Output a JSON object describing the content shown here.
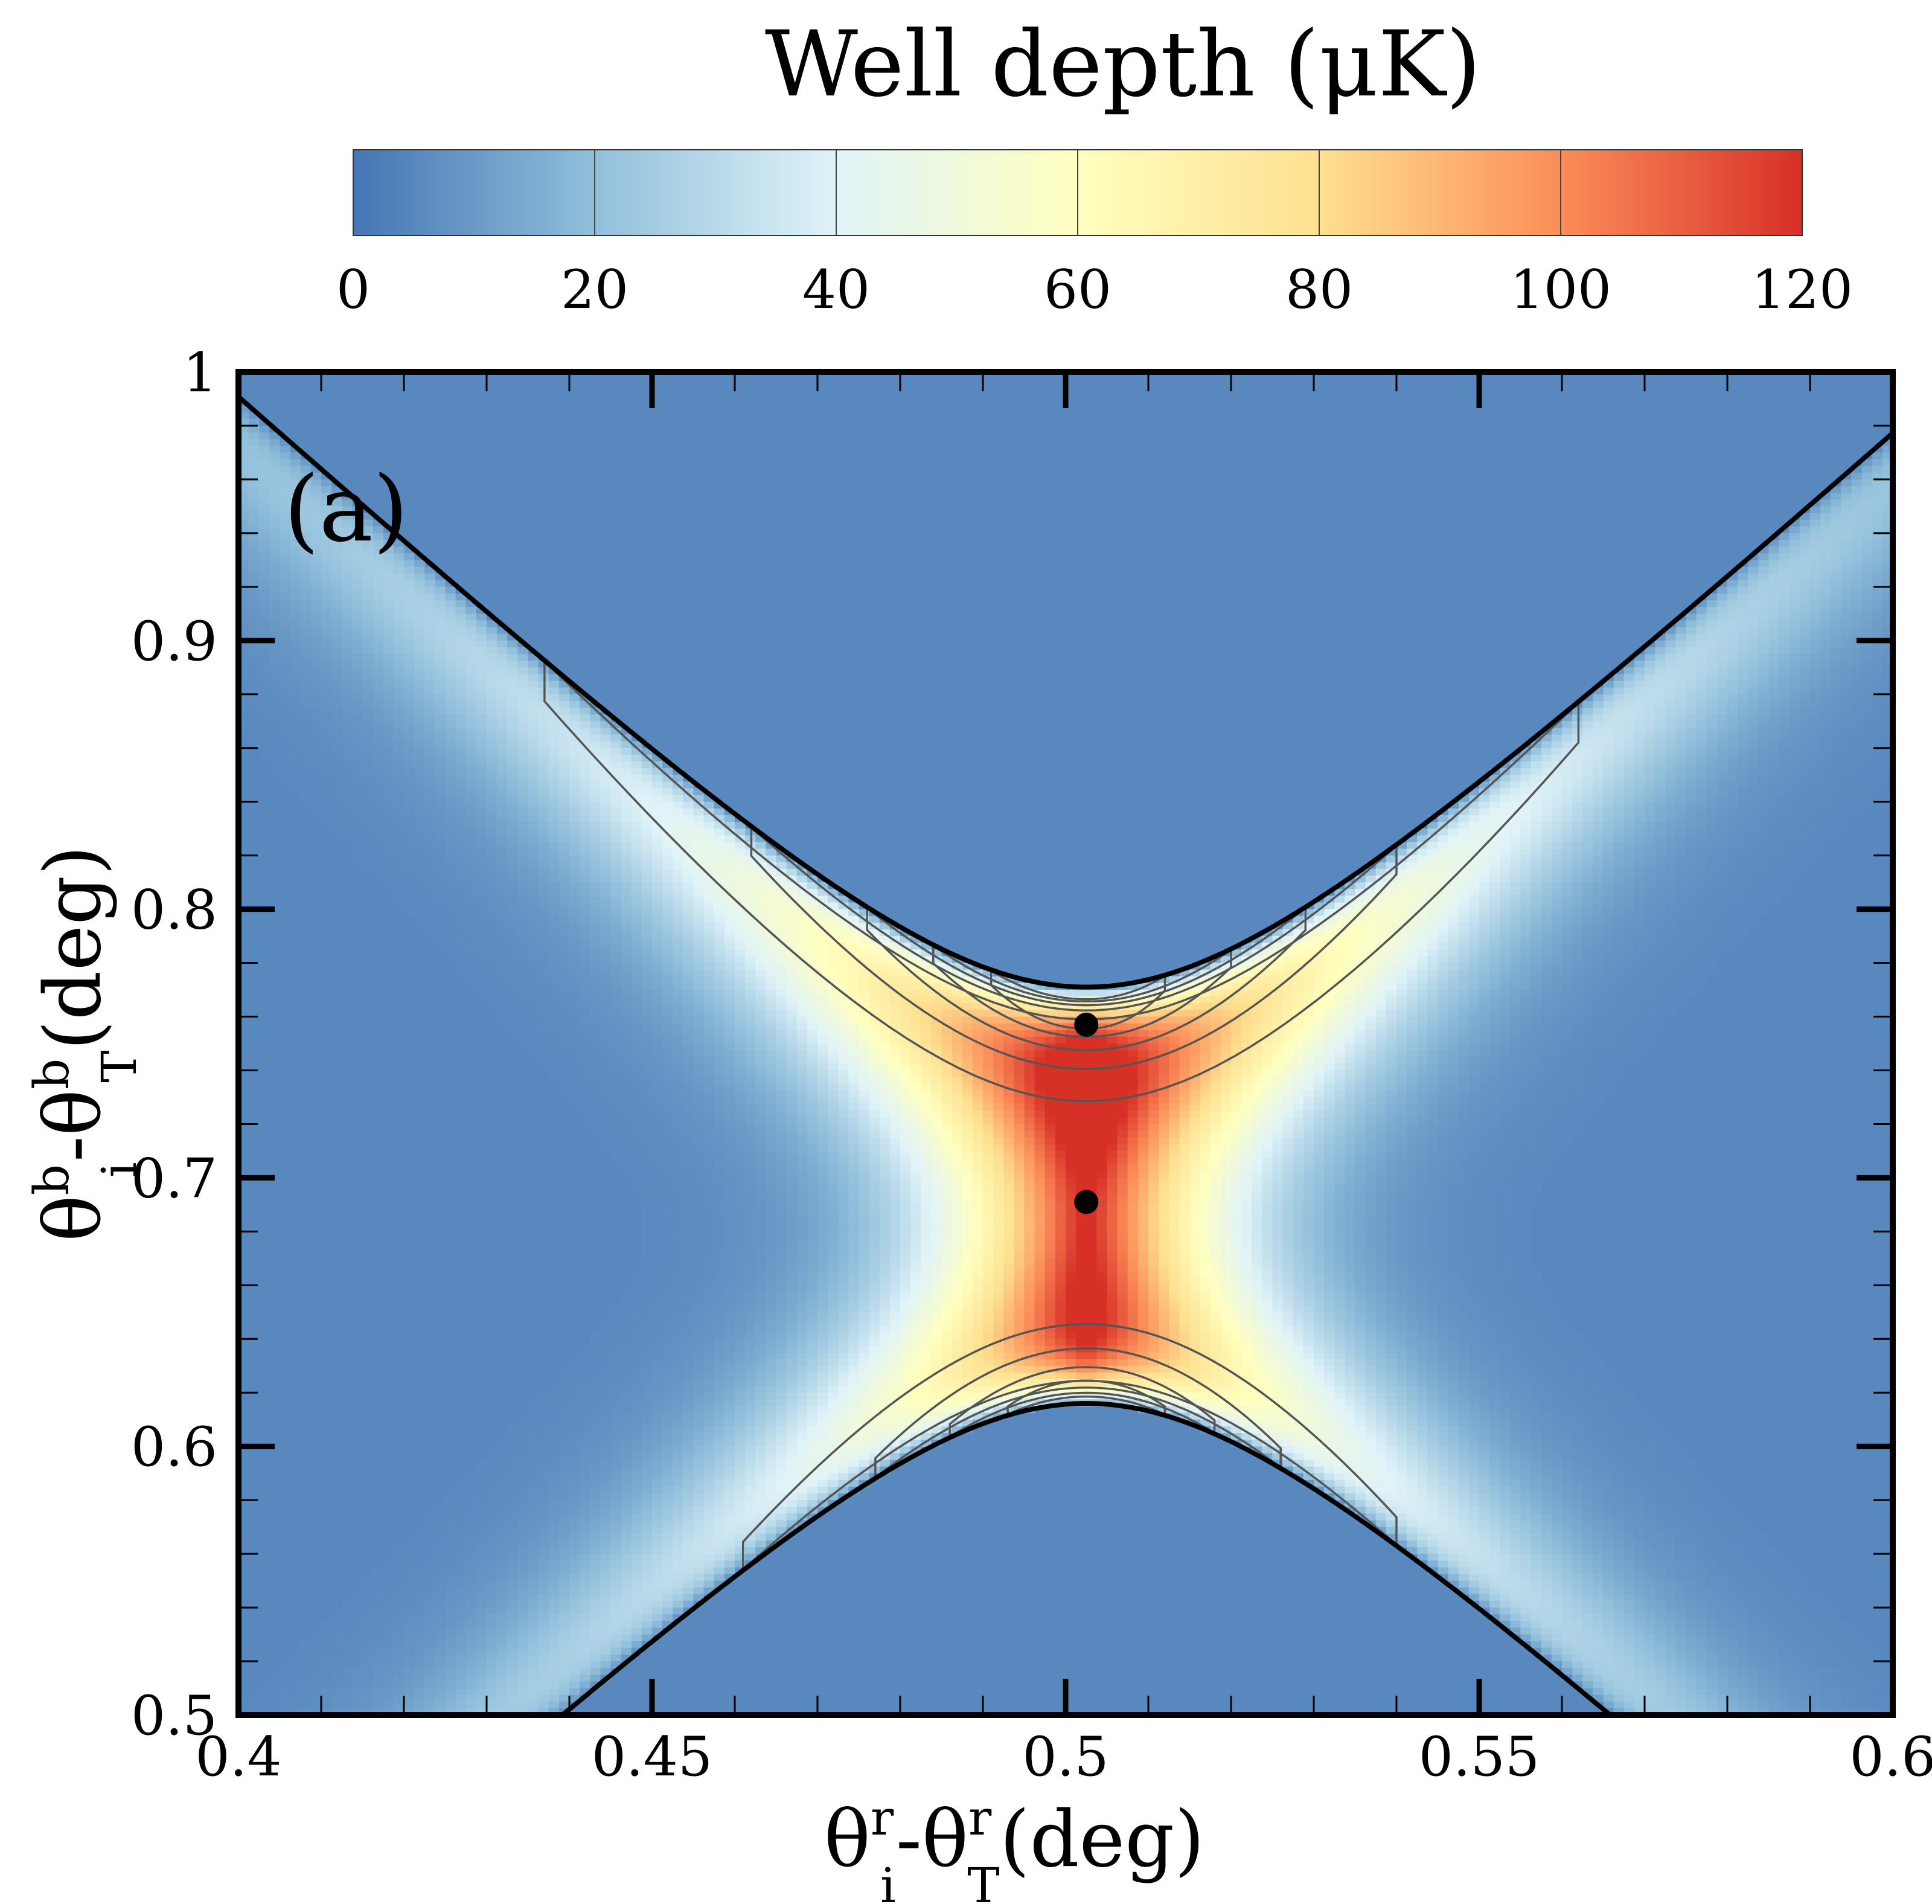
{
  "chart_data": {
    "type": "heatmap",
    "title": "",
    "panel_label": "(a)",
    "colorbar": {
      "title": "Well depth (μK)",
      "range": [
        0,
        120
      ],
      "ticks": [
        "0",
        "20",
        "40",
        "60",
        "80",
        "100",
        "120"
      ],
      "colors": [
        "#4575b4",
        "#91bfdb",
        "#e0f3f8",
        "#ffffbf",
        "#fee090",
        "#fc8d59",
        "#d73027"
      ]
    },
    "xaxis": {
      "label_main": "θ",
      "label_sup1": "r",
      "label_sub1": "i",
      "label_mid": "-θ",
      "label_sup2": "r",
      "label_sub2": "T",
      "label_unit": "(deg)",
      "range": [
        0.4,
        0.6
      ],
      "ticks": [
        0.4,
        0.45,
        0.5,
        0.55,
        0.6
      ],
      "tick_labels": [
        "0.4",
        "0.45",
        "0.5",
        "0.55",
        "0.6"
      ]
    },
    "yaxis": {
      "label_main": "θ",
      "label_sup1": "b",
      "label_sub1": "i",
      "label_mid": "-θ",
      "label_sup2": "b",
      "label_sub2": "T",
      "label_unit": "(deg)",
      "range": [
        0.5,
        1.0
      ],
      "ticks": [
        0.5,
        0.6,
        0.7,
        0.8,
        0.9,
        1.0
      ],
      "tick_labels": [
        "0.5",
        "0.6",
        "0.7",
        "0.8",
        "0.9",
        "1"
      ]
    },
    "background_value_uK": 5,
    "boundary_curves": {
      "description": "hyperbolic zero-depth boundaries",
      "x0": 0.5025,
      "upper": {
        "y_vertex": 0.771,
        "asymptote_slope": 2.8
      },
      "lower": {
        "y_vertex": 0.616,
        "asymptote_slope": 2.8
      }
    },
    "contour_levels_uK": [
      20,
      40,
      60,
      80,
      100
    ],
    "upper_lobe": {
      "peak_value_uK": 115,
      "contours": [
        {
          "level": 20,
          "y_vertex": 0.729,
          "x_range": [
            0.437,
            0.562
          ]
        },
        {
          "level": 40,
          "y_vertex": 0.741,
          "x_range": [
            0.462,
            0.54
          ]
        },
        {
          "level": 60,
          "y_vertex": 0.748,
          "x_range": [
            0.476,
            0.529
          ]
        },
        {
          "level": 80,
          "y_vertex": 0.753,
          "x_range": [
            0.484,
            0.52
          ]
        },
        {
          "level": 100,
          "y_vertex": 0.756,
          "x_range": [
            0.491,
            0.512
          ]
        }
      ]
    },
    "lower_lobe": {
      "peak_value_uK": 85,
      "contours": [
        {
          "level": 20,
          "y_vertex": 0.645,
          "x_range": [
            0.461,
            0.54
          ]
        },
        {
          "level": 40,
          "y_vertex": 0.636,
          "x_range": [
            0.477,
            0.526
          ]
        },
        {
          "level": 60,
          "y_vertex": 0.629,
          "x_range": [
            0.486,
            0.518
          ]
        },
        {
          "level": 80,
          "y_vertex": 0.624,
          "x_range": [
            0.493,
            0.512
          ]
        }
      ]
    },
    "points": [
      {
        "x": 0.5025,
        "y": 0.757
      },
      {
        "x": 0.5025,
        "y": 0.691
      }
    ]
  }
}
